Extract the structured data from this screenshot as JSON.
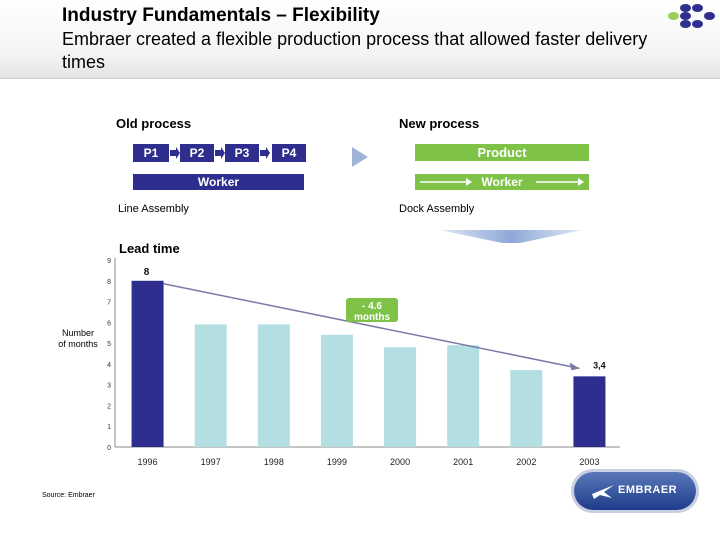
{
  "header": {
    "title": "Industry Fundamentals – Flexibility",
    "subtitle": "Embraer created a flexible production process that allowed faster delivery times"
  },
  "old_process": {
    "label": "Old process",
    "steps": [
      "P1",
      "P2",
      "P3",
      "P4"
    ],
    "worker": "Worker",
    "caption": "Line Assembly"
  },
  "new_process": {
    "label": "New process",
    "product": "Product",
    "worker": "Worker",
    "caption": "Dock Assembly"
  },
  "colors": {
    "navy": "#2e2e8e",
    "light_bar": "#b3dfe3",
    "green": "#7ec248",
    "arrow_blue": "#8fa8d8"
  },
  "chart_data": {
    "type": "bar",
    "title": "Lead time",
    "ylabel": "Number of months",
    "categories": [
      "1996",
      "1997",
      "1998",
      "1999",
      "2000",
      "2001",
      "2002",
      "2003"
    ],
    "values": [
      8,
      5.9,
      5.9,
      5.4,
      4.8,
      4.9,
      3.7,
      3.4
    ],
    "value_labels": [
      "8",
      "",
      "",
      "",
      "",
      "",
      "",
      "3,4"
    ],
    "highlight": [
      true,
      false,
      false,
      false,
      false,
      false,
      false,
      true
    ],
    "yticks": [
      "0",
      "1",
      "2",
      "3",
      "4",
      "5",
      "6",
      "7",
      "8",
      "9"
    ],
    "ylim": [
      0,
      9
    ],
    "annotation": "- 4.6 months",
    "grid": false
  },
  "source": "Source: Embraer",
  "logo_text": "EMBRAER"
}
